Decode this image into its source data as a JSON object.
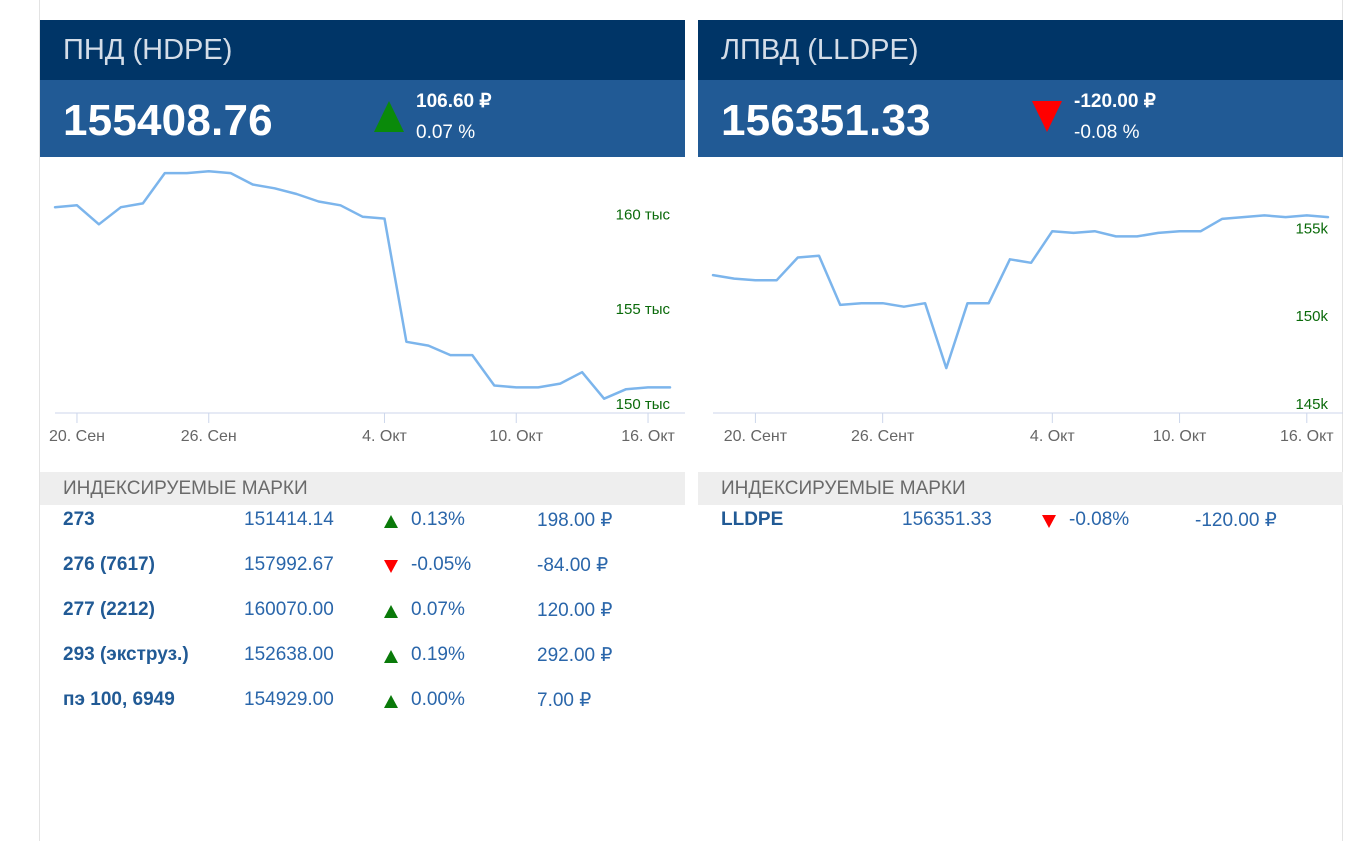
{
  "panels": [
    {
      "title": "ПНД (HDPE)",
      "value": "155408.76",
      "trend": "up",
      "change_abs": "106.60 ₽",
      "change_pct": "0.07 %",
      "chart_data": {
        "type": "line",
        "x": [
          "2023-09-19",
          "2023-09-20",
          "2023-09-21",
          "2023-09-22",
          "2023-09-23",
          "2023-09-24",
          "2023-09-25",
          "2023-09-26",
          "2023-09-27",
          "2023-09-28",
          "2023-09-29",
          "2023-09-30",
          "2023-10-01",
          "2023-10-02",
          "2023-10-03",
          "2023-10-04",
          "2023-10-05",
          "2023-10-06",
          "2023-10-07",
          "2023-10-08",
          "2023-10-09",
          "2023-10-10",
          "2023-10-11",
          "2023-10-12",
          "2023-10-13",
          "2023-10-14",
          "2023-10-15",
          "2023-10-16",
          "2023-10-17"
        ],
        "values": [
          160800,
          160900,
          159900,
          160800,
          161000,
          162600,
          162600,
          162700,
          162600,
          162000,
          161800,
          161500,
          161100,
          160900,
          160300,
          160200,
          153700,
          153500,
          153000,
          153000,
          151400,
          151300,
          151300,
          151500,
          152100,
          150700,
          151200,
          151300,
          151300
        ],
        "xticks": [
          "20. Сен",
          "26. Сен",
          "4. Окт",
          "10. Окт",
          "16. Окт"
        ],
        "xtick_dates": [
          "2023-09-20",
          "2023-09-26",
          "2023-10-04",
          "2023-10-10",
          "2023-10-16"
        ],
        "yticks": [
          "160 тыс",
          "155 тыс",
          "150 тыс"
        ],
        "ytick_values": [
          160000,
          155000,
          150000
        ],
        "ylim": [
          150000,
          162500
        ],
        "line_color": "#7cb5ec",
        "tick_label_color": "#0a6a0a"
      },
      "grades_header": "ИНДЕКСИРУЕМЫЕ МАРКИ",
      "grades": [
        {
          "name": "273",
          "price": "151414.14",
          "trend": "up",
          "pct": "0.13%",
          "abs": "198.00 ₽"
        },
        {
          "name": "276 (7617)",
          "price": "157992.67",
          "trend": "down",
          "pct": "-0.05%",
          "abs": "-84.00 ₽"
        },
        {
          "name": "277 (2212)",
          "price": "160070.00",
          "trend": "up",
          "pct": "0.07%",
          "abs": "120.00 ₽"
        },
        {
          "name": "293 (экструз.)",
          "price": "152638.00",
          "trend": "up",
          "pct": "0.19%",
          "abs": "292.00 ₽"
        },
        {
          "name": "пэ 100, 6949",
          "price": "154929.00",
          "trend": "up",
          "pct": "0.00%",
          "abs": "7.00 ₽"
        }
      ]
    },
    {
      "title": "ЛПВД (LLDPE)",
      "value": "156351.33",
      "trend": "down",
      "change_abs": "-120.00 ₽",
      "change_pct": "-0.08 %",
      "chart_data": {
        "type": "line",
        "x": [
          "2023-09-18",
          "2023-09-19",
          "2023-09-20",
          "2023-09-21",
          "2023-09-22",
          "2023-09-23",
          "2023-09-24",
          "2023-09-25",
          "2023-09-26",
          "2023-09-27",
          "2023-09-28",
          "2023-09-29",
          "2023-09-30",
          "2023-10-01",
          "2023-10-02",
          "2023-10-03",
          "2023-10-04",
          "2023-10-05",
          "2023-10-06",
          "2023-10-07",
          "2023-10-08",
          "2023-10-09",
          "2023-10-10",
          "2023-10-11",
          "2023-10-12",
          "2023-10-13",
          "2023-10-14",
          "2023-10-15",
          "2023-10-16",
          "2023-10-17"
        ],
        "values": [
          152800,
          152600,
          152500,
          152500,
          153800,
          153900,
          151100,
          151200,
          151200,
          151000,
          151200,
          147500,
          151200,
          151200,
          153700,
          153500,
          155300,
          155200,
          155300,
          155000,
          155000,
          155200,
          155300,
          155300,
          156000,
          156100,
          156200,
          156100,
          156200,
          156100
        ],
        "xticks": [
          "20. Сент",
          "26. Сент",
          "4. Окт",
          "10. Окт",
          "16. Окт"
        ],
        "xtick_dates": [
          "2023-09-20",
          "2023-09-26",
          "2023-10-04",
          "2023-10-10",
          "2023-10-16"
        ],
        "yticks": [
          "155k",
          "150k",
          "145k"
        ],
        "ytick_values": [
          155000,
          150000,
          145000
        ],
        "ylim": [
          145000,
          158500
        ],
        "line_color": "#7cb5ec",
        "tick_label_color": "#0a6a0a"
      },
      "grades_header": "ИНДЕКСИРУЕМЫЕ МАРКИ",
      "grades": [
        {
          "name": "LLDPE",
          "price": "156351.33",
          "trend": "down",
          "pct": "-0.08%",
          "abs": "-120.00 ₽"
        }
      ]
    }
  ]
}
